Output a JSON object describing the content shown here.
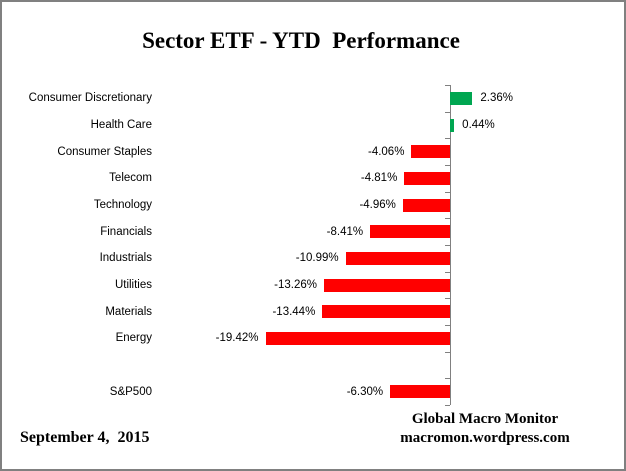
{
  "title": "Sector ETF - YTD  Performance",
  "footer": {
    "date": "September 4,  2015",
    "credit_line1": "Global Macro Monitor",
    "credit_line2": "macromon.wordpress.com"
  },
  "chart_data": {
    "type": "bar",
    "orientation": "horizontal",
    "title": "Sector ETF - YTD  Performance",
    "value_unit": "%",
    "categories": [
      "Consumer Discretionary",
      "Health Care",
      "Consumer Staples",
      "Telecom",
      "Technology",
      "Financials",
      "Industrials",
      "Utilities",
      "Materials",
      "Energy"
    ],
    "values": [
      2.36,
      0.44,
      -4.06,
      -4.81,
      -4.96,
      -8.41,
      -10.99,
      -13.26,
      -13.44,
      -19.42
    ],
    "value_labels": [
      "2.36%",
      "0.44%",
      "-4.06%",
      "-4.81%",
      "-4.96%",
      "-8.41%",
      "-10.99%",
      "-13.26%",
      "-13.44%",
      "-19.42%"
    ],
    "benchmark": {
      "category": "S&P500",
      "value": -6.3,
      "value_label": "-6.30%"
    },
    "gap_rows_before_benchmark": 1,
    "baseline": 0,
    "grid": false,
    "legend": false,
    "colors": {
      "positive": "#00A651",
      "negative": "#FF0000",
      "axis": "#808080",
      "text": "#000000"
    }
  }
}
